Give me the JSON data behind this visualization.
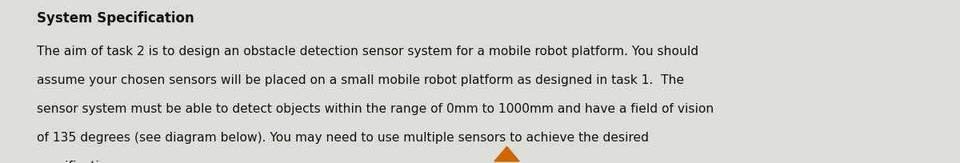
{
  "title": "System Specification",
  "line1": "The aim of task 2 is to design an obstacle detection sensor system for a mobile robot platform. You should",
  "line2": "assume your chosen sensors will be placed on a small mobile robot platform as designed in task 1.  The",
  "line3": "sensor system must be able to detect objects within the range of 0mm to 1000mm and have a field of vision",
  "line4": "of 135 degrees (see diagram below). You may need to use multiple sensors to achieve the desired",
  "line5": "specification.",
  "background_color": "#deded8",
  "title_color": "#111111",
  "body_color": "#111111",
  "title_fontsize": 12.0,
  "body_fontsize": 11.2,
  "title_font_weight": "bold",
  "triangle_color": "#cc6600",
  "figsize": [
    12.0,
    2.05
  ],
  "dpi": 100
}
